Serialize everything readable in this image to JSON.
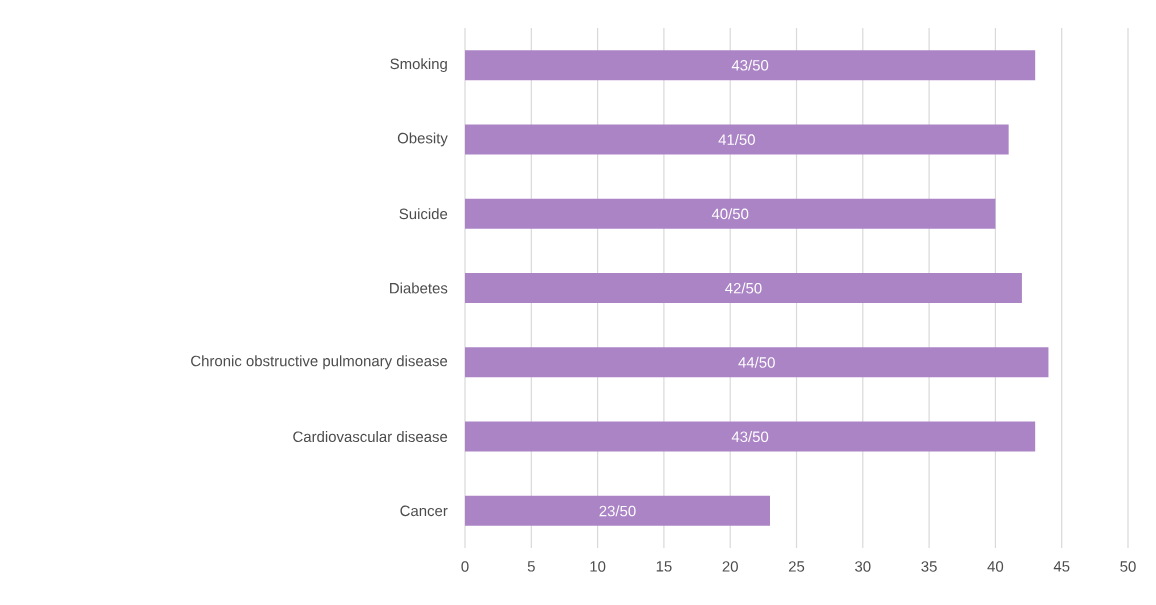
{
  "chart_data": {
    "type": "bar",
    "orientation": "horizontal",
    "categories": [
      "Smoking",
      "Obesity",
      "Suicide",
      "Diabetes",
      "Chronic obstructive pulmonary disease",
      "Cardiovascular disease",
      "Cancer"
    ],
    "values": [
      43,
      41,
      40,
      42,
      44,
      43,
      23
    ],
    "value_labels": [
      "43/50",
      "41/50",
      "40/50",
      "42/50",
      "44/50",
      "43/50",
      "23/50"
    ],
    "color": "#ab84c6",
    "xlim": [
      0,
      50
    ],
    "xticks": [
      0,
      5,
      10,
      15,
      20,
      25,
      30,
      35,
      40,
      45,
      50
    ],
    "grid": "x"
  }
}
